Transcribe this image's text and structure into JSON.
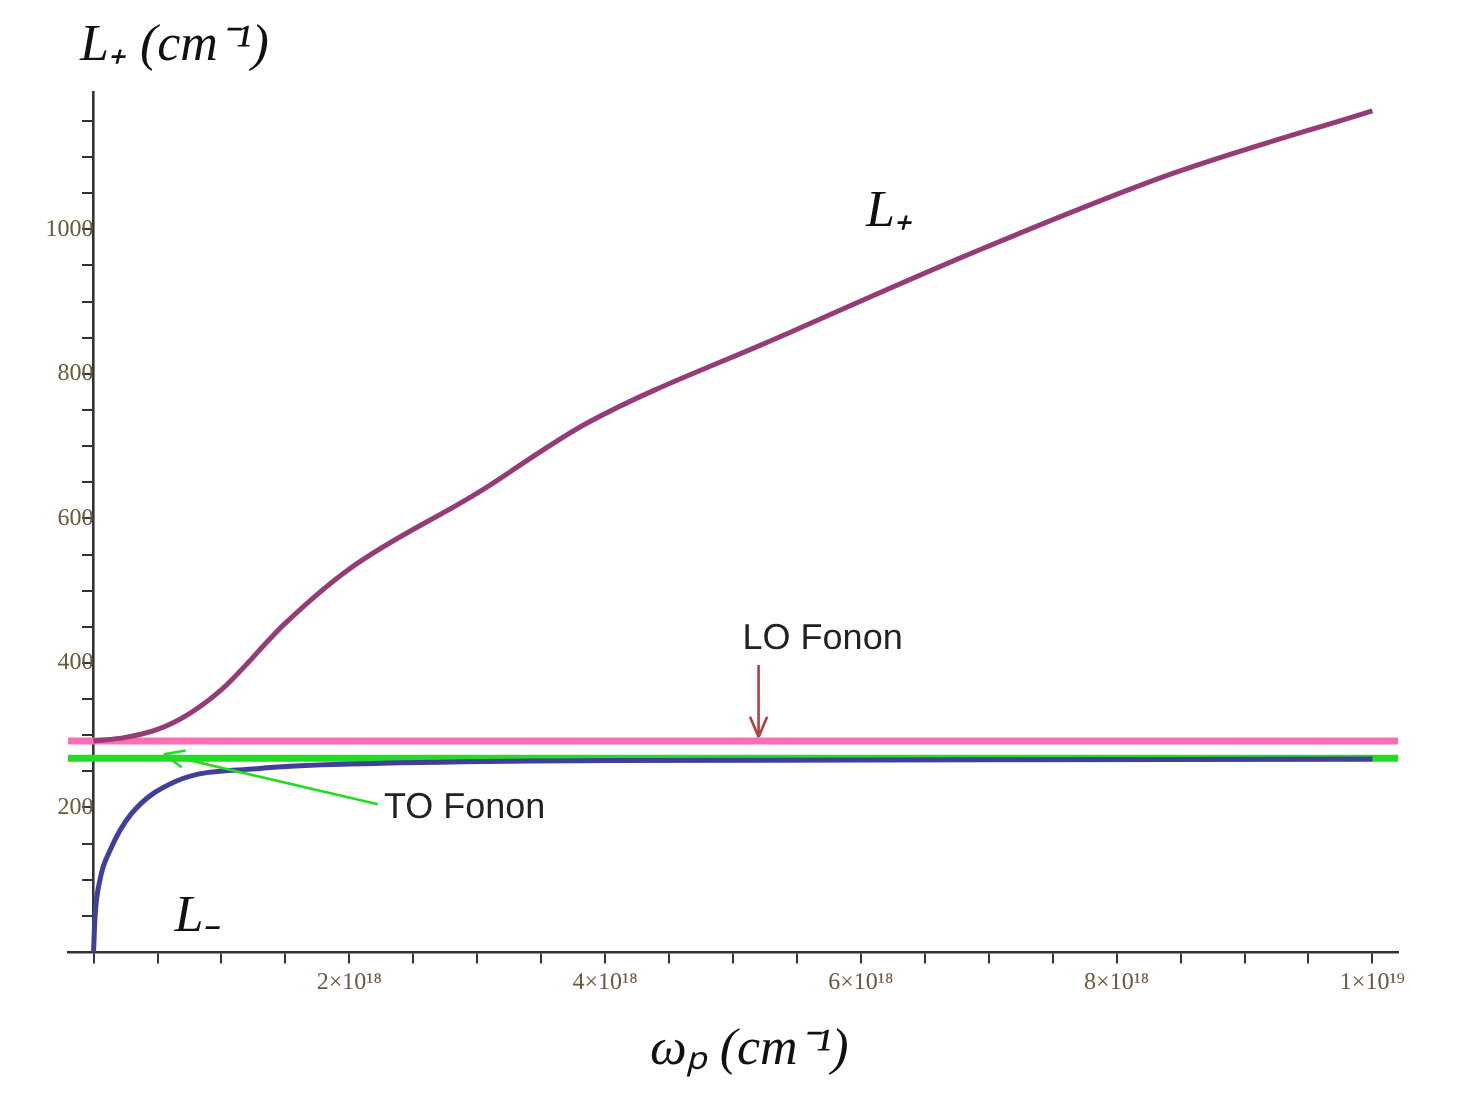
{
  "chart_data": {
    "type": "line",
    "xlabel": "ωₚ (cm⁻¹)",
    "ylabel": "L₊ (cm⁻¹)",
    "xlim": [
      -2e+17,
      1.02e+19
    ],
    "ylim": [
      0,
      1190
    ],
    "xticks": [
      {
        "value": 0,
        "label": null
      },
      {
        "value": 5e+17,
        "label": null
      },
      {
        "value": 1e+18,
        "label": null
      },
      {
        "value": 1.5e+18,
        "label": null
      },
      {
        "value": 2e+18,
        "label": "2×10¹⁸"
      },
      {
        "value": 2.5e+18,
        "label": null
      },
      {
        "value": 3e+18,
        "label": null
      },
      {
        "value": 3.5e+18,
        "label": null
      },
      {
        "value": 4e+18,
        "label": "4×10¹⁸"
      },
      {
        "value": 4.5e+18,
        "label": null
      },
      {
        "value": 5e+18,
        "label": null
      },
      {
        "value": 5.5e+18,
        "label": null
      },
      {
        "value": 6e+18,
        "label": "6×10¹⁸"
      },
      {
        "value": 6.5e+18,
        "label": null
      },
      {
        "value": 7e+18,
        "label": null
      },
      {
        "value": 7.5e+18,
        "label": null
      },
      {
        "value": 8e+18,
        "label": "8×10¹⁸"
      },
      {
        "value": 8.5e+18,
        "label": null
      },
      {
        "value": 9e+18,
        "label": null
      },
      {
        "value": 9.5e+18,
        "label": null
      },
      {
        "value": 1e+19,
        "label": "1×10¹⁹"
      }
    ],
    "yticks": [
      {
        "value": 0,
        "label": null
      },
      {
        "value": 50,
        "label": null
      },
      {
        "value": 100,
        "label": null
      },
      {
        "value": 150,
        "label": null
      },
      200,
      {
        "value": 250,
        "label": null
      },
      {
        "value": 300,
        "label": null
      },
      {
        "value": 350,
        "label": null
      },
      400,
      {
        "value": 450,
        "label": null
      },
      {
        "value": 500,
        "label": null
      },
      {
        "value": 550,
        "label": null
      },
      600,
      {
        "value": 650,
        "label": null
      },
      {
        "value": 700,
        "label": null
      },
      {
        "value": 750,
        "label": null
      },
      800,
      {
        "value": 850,
        "label": null
      },
      {
        "value": 900,
        "label": null
      },
      {
        "value": 950,
        "label": null
      },
      1000,
      {
        "value": 1050,
        "label": null
      },
      {
        "value": 1100,
        "label": null
      },
      {
        "value": 1150,
        "label": null
      }
    ],
    "series": [
      {
        "name": "L₊",
        "color": "#943c76",
        "x": [
          0,
          2.5e+17,
          5e+17,
          7.5e+17,
          1e+18,
          1.5e+18,
          2e+18,
          3e+18,
          3.86e+18,
          5.39e+18,
          6.92e+18,
          8.45e+18,
          1e+19
        ],
        "values": [
          292,
          297,
          308,
          330,
          363,
          455,
          530,
          635,
          732,
          853,
          971,
          1078,
          1164
        ]
      },
      {
        "name": "L₋",
        "color": "#40409c",
        "x": [
          0,
          1e+16,
          5e+16,
          1.3e+17,
          2.9e+17,
          6.4e+17,
          1.3e+18,
          2e+18,
          4e+18,
          7e+18,
          1e+19
        ],
        "values": [
          0,
          45,
          100,
          141,
          190,
          236,
          254,
          260,
          265,
          266,
          267
        ]
      }
    ],
    "ref_lines": [
      {
        "axis": "y",
        "value": 292,
        "color": "#ff6eb4"
      },
      {
        "axis": "y",
        "value": 268,
        "color": "#22dd22"
      }
    ],
    "annotations": [
      {
        "text": "LO Fonon",
        "x": 5.2e+18,
        "y": 292
      },
      {
        "text": "TO Fonon",
        "x": 5.5e+17,
        "y": 268
      }
    ],
    "grid": false,
    "legend": false,
    "marker": "none",
    "line_style": "solid"
  }
}
